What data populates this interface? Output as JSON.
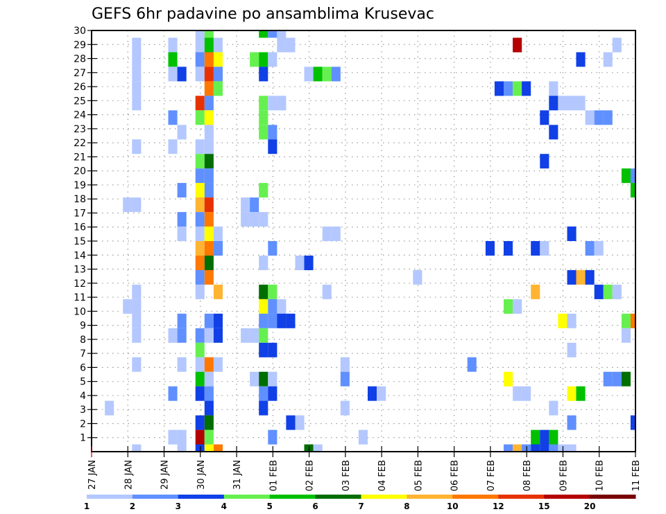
{
  "chart_data": {
    "type": "heatmap",
    "title": "GEFS 6hr padavine po ansamblima Krusevac",
    "xlabel": "",
    "ylabel": "",
    "x_tick_labels": [
      "27 JAN",
      "28 JAN",
      "29 JAN",
      "30 JAN",
      "31 JAN",
      "01 FEB",
      "02 FEB",
      "03 FEB",
      "04 FEB",
      "05 FEB",
      "06 FEB",
      "07 FEB",
      "08 FEB",
      "09 FEB",
      "10 FEB",
      "11 FEB"
    ],
    "x_step_hours": 6,
    "x_steps_total": 60,
    "y_tick_labels": [
      "1",
      "2",
      "3",
      "4",
      "5",
      "6",
      "7",
      "8",
      "9",
      "10",
      "11",
      "12",
      "13",
      "14",
      "15",
      "16",
      "17",
      "18",
      "19",
      "20",
      "21",
      "22",
      "23",
      "24",
      "25",
      "26",
      "27",
      "28",
      "29",
      "30"
    ],
    "ylim": [
      0,
      30
    ],
    "grid": true,
    "colorbar": {
      "labels": [
        "1",
        "2",
        "3",
        "4",
        "5",
        "6",
        "7",
        "8",
        "10",
        "12",
        "15",
        "20"
      ],
      "colors": [
        "#b4c8ff",
        "#6090ff",
        "#1040e6",
        "#66f050",
        "#00c000",
        "#006e00",
        "#ffff00",
        "#ffb432",
        "#ff7800",
        "#e63200",
        "#b40000",
        "#780000"
      ]
    },
    "cells_note": "each cell: [time step index (6h steps from 27 JAN 00), ensemble member, color level index 0-11]",
    "cells": [
      [
        4,
        29,
        0
      ],
      [
        4,
        28,
        0
      ],
      [
        4,
        27,
        0
      ],
      [
        4,
        26,
        0
      ],
      [
        4,
        25,
        0
      ],
      [
        4,
        22,
        0
      ],
      [
        8,
        29,
        0
      ],
      [
        8,
        28,
        4
      ],
      [
        8,
        27,
        0
      ],
      [
        9,
        27,
        2
      ],
      [
        8,
        24,
        1
      ],
      [
        8,
        22,
        0
      ],
      [
        9,
        23,
        0
      ],
      [
        11,
        30,
        0
      ],
      [
        11,
        29,
        0
      ],
      [
        11,
        28,
        1
      ],
      [
        11,
        27,
        0
      ],
      [
        11,
        25,
        9
      ],
      [
        11,
        24,
        3
      ],
      [
        11,
        22,
        0
      ],
      [
        11,
        21,
        3
      ],
      [
        12,
        30,
        3
      ],
      [
        12,
        29,
        4
      ],
      [
        12,
        28,
        8
      ],
      [
        12,
        27,
        9
      ],
      [
        12,
        26,
        8
      ],
      [
        12,
        25,
        1
      ],
      [
        12,
        24,
        6
      ],
      [
        12,
        23,
        0
      ],
      [
        12,
        22,
        0
      ],
      [
        12,
        21,
        5
      ],
      [
        13,
        29,
        0
      ],
      [
        13,
        28,
        6
      ],
      [
        13,
        27,
        1
      ],
      [
        13,
        26,
        3
      ],
      [
        11,
        20,
        1
      ],
      [
        11,
        19,
        6
      ],
      [
        11,
        18,
        7
      ],
      [
        11,
        17,
        1
      ],
      [
        11,
        16,
        0
      ],
      [
        11,
        15,
        7
      ],
      [
        11,
        14,
        8
      ],
      [
        11,
        13,
        1
      ],
      [
        11,
        12,
        0
      ],
      [
        12,
        20,
        1
      ],
      [
        12,
        19,
        1
      ],
      [
        12,
        18,
        9
      ],
      [
        12,
        17,
        8
      ],
      [
        12,
        16,
        6
      ],
      [
        12,
        15,
        8
      ],
      [
        12,
        14,
        5
      ],
      [
        12,
        13,
        8
      ],
      [
        13,
        16,
        0
      ],
      [
        13,
        15,
        1
      ],
      [
        13,
        12,
        7
      ],
      [
        9,
        19,
        1
      ],
      [
        9,
        17,
        1
      ],
      [
        9,
        16,
        0
      ],
      [
        3,
        18,
        0
      ],
      [
        4,
        18,
        0
      ],
      [
        4,
        12,
        0
      ],
      [
        3,
        11,
        0
      ],
      [
        4,
        11,
        0
      ],
      [
        16,
        18,
        0
      ],
      [
        17,
        18,
        1
      ],
      [
        16,
        17,
        0
      ],
      [
        17,
        17,
        0
      ],
      [
        18,
        17,
        0
      ],
      [
        18,
        19,
        3
      ],
      [
        25,
        16,
        0
      ],
      [
        26,
        16,
        0
      ],
      [
        19,
        15,
        1
      ],
      [
        18,
        14,
        0
      ],
      [
        22,
        14,
        0
      ],
      [
        23,
        14,
        2
      ],
      [
        25,
        12,
        0
      ],
      [
        18,
        12,
        5
      ],
      [
        19,
        12,
        3
      ],
      [
        18,
        11,
        6
      ],
      [
        19,
        11,
        1
      ],
      [
        20,
        11,
        0
      ],
      [
        18,
        10,
        1
      ],
      [
        19,
        10,
        1
      ],
      [
        20,
        10,
        2
      ],
      [
        21,
        10,
        2
      ],
      [
        16,
        9,
        0
      ],
      [
        17,
        9,
        0
      ],
      [
        18,
        9,
        3
      ],
      [
        18,
        8,
        2
      ],
      [
        19,
        8,
        2
      ],
      [
        27,
        7,
        0
      ],
      [
        17,
        6,
        0
      ],
      [
        18,
        6,
        5
      ],
      [
        19,
        6,
        0
      ],
      [
        27,
        6,
        1
      ],
      [
        18,
        5,
        1
      ],
      [
        19,
        5,
        2
      ],
      [
        30,
        5,
        2
      ],
      [
        31,
        5,
        0
      ],
      [
        18,
        4,
        2
      ],
      [
        27,
        4,
        0
      ],
      [
        21,
        3,
        2
      ],
      [
        22,
        3,
        0
      ],
      [
        19,
        2,
        1
      ],
      [
        29,
        2,
        0
      ],
      [
        23,
        1,
        5
      ],
      [
        24,
        1,
        0
      ],
      [
        4,
        10,
        0
      ],
      [
        9,
        10,
        1
      ],
      [
        12,
        10,
        1
      ],
      [
        13,
        10,
        2
      ],
      [
        4,
        9,
        0
      ],
      [
        8,
        9,
        0
      ],
      [
        9,
        9,
        1
      ],
      [
        11,
        9,
        1
      ],
      [
        12,
        9,
        0
      ],
      [
        13,
        9,
        2
      ],
      [
        11,
        8,
        3
      ],
      [
        4,
        7,
        0
      ],
      [
        9,
        7,
        0
      ],
      [
        11,
        7,
        0
      ],
      [
        12,
        7,
        8
      ],
      [
        13,
        7,
        0
      ],
      [
        11,
        6,
        4
      ],
      [
        12,
        6,
        0
      ],
      [
        8,
        5,
        1
      ],
      [
        11,
        5,
        2
      ],
      [
        12,
        5,
        1
      ],
      [
        1,
        4,
        0
      ],
      [
        12,
        4,
        2
      ],
      [
        11,
        3,
        2
      ],
      [
        12,
        3,
        5
      ],
      [
        8,
        2,
        0
      ],
      [
        9,
        2,
        0
      ],
      [
        11,
        2,
        10
      ],
      [
        12,
        2,
        3
      ],
      [
        4,
        1,
        0
      ],
      [
        9,
        1,
        0
      ],
      [
        11,
        1,
        2
      ],
      [
        12,
        1,
        6
      ],
      [
        13,
        1,
        8
      ],
      [
        18,
        30,
        4
      ],
      [
        19,
        30,
        1
      ],
      [
        20,
        30,
        0
      ],
      [
        20,
        29,
        0
      ],
      [
        21,
        29,
        0
      ],
      [
        17,
        28,
        3
      ],
      [
        18,
        28,
        4
      ],
      [
        19,
        28,
        0
      ],
      [
        18,
        27,
        2
      ],
      [
        23,
        27,
        0
      ],
      [
        24,
        27,
        4
      ],
      [
        25,
        27,
        3
      ],
      [
        26,
        27,
        1
      ],
      [
        18,
        25,
        3
      ],
      [
        19,
        25,
        0
      ],
      [
        20,
        25,
        0
      ],
      [
        18,
        24,
        3
      ],
      [
        18,
        23,
        3
      ],
      [
        19,
        23,
        1
      ],
      [
        19,
        22,
        2
      ],
      [
        35,
        13,
        0
      ],
      [
        41,
        7,
        1
      ],
      [
        46,
        29,
        10
      ],
      [
        57,
        29,
        0
      ],
      [
        53,
        28,
        2
      ],
      [
        56,
        28,
        0
      ],
      [
        44,
        26,
        2
      ],
      [
        45,
        26,
        1
      ],
      [
        46,
        26,
        3
      ],
      [
        47,
        26,
        2
      ],
      [
        50,
        26,
        0
      ],
      [
        50,
        25,
        2
      ],
      [
        51,
        25,
        0
      ],
      [
        52,
        25,
        0
      ],
      [
        53,
        25,
        0
      ],
      [
        49,
        24,
        2
      ],
      [
        54,
        24,
        0
      ],
      [
        55,
        24,
        1
      ],
      [
        56,
        24,
        1
      ],
      [
        50,
        23,
        2
      ],
      [
        49,
        21,
        2
      ],
      [
        58,
        20,
        4
      ],
      [
        59,
        20,
        1
      ],
      [
        59,
        19,
        4
      ],
      [
        52,
        16,
        2
      ],
      [
        43,
        15,
        2
      ],
      [
        45,
        15,
        2
      ],
      [
        48,
        15,
        2
      ],
      [
        49,
        15,
        0
      ],
      [
        54,
        15,
        1
      ],
      [
        55,
        15,
        0
      ],
      [
        52,
        13,
        2
      ],
      [
        53,
        13,
        7
      ],
      [
        54,
        13,
        2
      ],
      [
        48,
        12,
        7
      ],
      [
        55,
        12,
        2
      ],
      [
        56,
        12,
        3
      ],
      [
        57,
        12,
        0
      ],
      [
        45,
        11,
        3
      ],
      [
        46,
        11,
        0
      ],
      [
        51,
        10,
        6
      ],
      [
        52,
        10,
        0
      ],
      [
        58,
        10,
        3
      ],
      [
        59,
        10,
        8
      ],
      [
        58,
        9,
        0
      ],
      [
        52,
        8,
        0
      ],
      [
        45,
        6,
        6
      ],
      [
        56,
        6,
        1
      ],
      [
        57,
        6,
        1
      ],
      [
        58,
        6,
        5
      ],
      [
        46,
        5,
        0
      ],
      [
        47,
        5,
        0
      ],
      [
        52,
        5,
        6
      ],
      [
        53,
        5,
        4
      ],
      [
        50,
        4,
        0
      ],
      [
        52,
        3,
        1
      ],
      [
        59,
        3,
        2
      ],
      [
        48,
        2,
        4
      ],
      [
        49,
        2,
        2
      ],
      [
        50,
        2,
        4
      ],
      [
        45,
        1,
        1
      ],
      [
        46,
        1,
        7
      ],
      [
        47,
        1,
        1
      ],
      [
        48,
        1,
        2
      ],
      [
        49,
        1,
        2
      ],
      [
        50,
        1,
        1
      ],
      [
        51,
        1,
        0
      ],
      [
        52,
        1,
        0
      ]
    ]
  }
}
